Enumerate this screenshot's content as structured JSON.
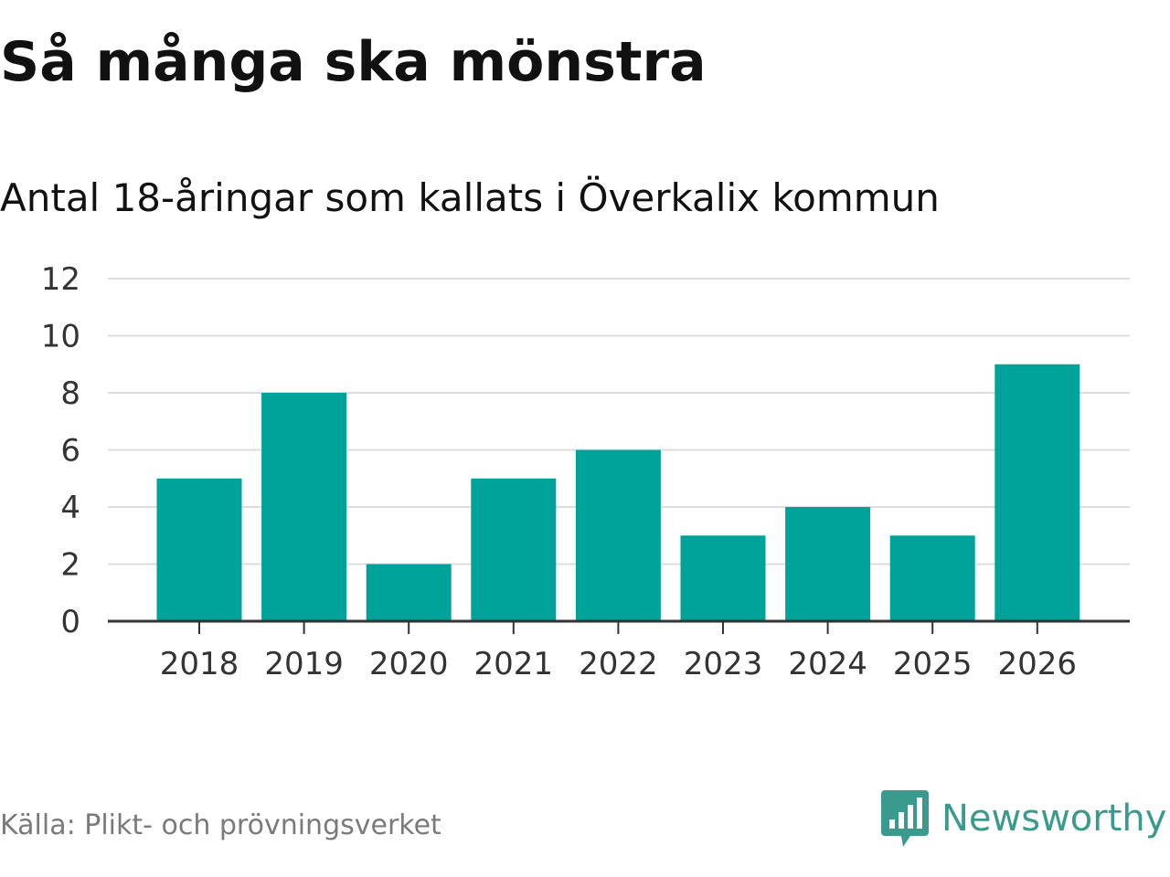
{
  "colors": {
    "bar": "#00a39a",
    "grid": "#dddddd",
    "axis": "#333333",
    "brand": "#3a9a8e",
    "source_text": "#7a7a7a"
  },
  "source": "Källa: Plikt- och prövningsverket",
  "brand": {
    "name": "Newsworthy",
    "logo_icon": "bar-chart-speech-bubble-icon"
  },
  "chart_data": {
    "type": "bar",
    "title": "Så många ska mönstra",
    "subtitle": "Antal 18-åringar som kallats i Överkalix kommun",
    "categories": [
      "2018",
      "2019",
      "2020",
      "2021",
      "2022",
      "2023",
      "2024",
      "2025",
      "2026"
    ],
    "values": [
      5,
      8,
      2,
      5,
      6,
      3,
      4,
      3,
      9
    ],
    "ylim": [
      0,
      12
    ],
    "yticks": [
      0,
      2,
      4,
      6,
      8,
      10,
      12
    ],
    "grid": true,
    "legend": "none"
  }
}
